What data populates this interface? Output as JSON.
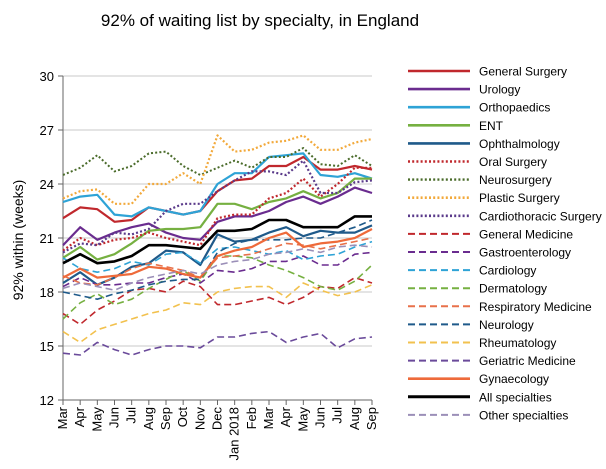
{
  "chart_data": {
    "type": "line",
    "title": "92% of waiting list by specialty, in England",
    "ylabel": "92% within (weeks)",
    "xlabel": "",
    "ylim": [
      12,
      30
    ],
    "yticks": [
      12,
      15,
      18,
      21,
      24,
      27,
      30
    ],
    "x": [
      "Mar",
      "Apr",
      "May",
      "Jun",
      "Jul",
      "Aug",
      "Sep",
      "Oct",
      "Nov",
      "Dec",
      "Jan 2018",
      "Feb",
      "Mar",
      "Apr",
      "May",
      "Jun",
      "Jul",
      "Aug",
      "Sep"
    ],
    "grid": "horizontal",
    "legend": "right",
    "series": [
      {
        "name": "General Surgery",
        "color": "#c0282d",
        "dash": "solid",
        "width": 2.2,
        "values": [
          22.1,
          22.7,
          22.6,
          21.9,
          22.0,
          22.7,
          22.5,
          22.3,
          22.5,
          23.6,
          24.2,
          24.3,
          25.0,
          25.0,
          25.5,
          24.8,
          24.8,
          25.0,
          24.8
        ]
      },
      {
        "name": "Urology",
        "color": "#6a2c8f",
        "dash": "solid",
        "width": 2.2,
        "values": [
          20.6,
          21.6,
          20.9,
          21.3,
          21.6,
          21.8,
          21.3,
          21.0,
          20.9,
          21.9,
          22.2,
          22.2,
          22.5,
          23.0,
          23.3,
          22.9,
          23.3,
          23.8,
          23.5
        ]
      },
      {
        "name": "Orthopaedics",
        "color": "#2ea3d6",
        "dash": "solid",
        "width": 2.2,
        "values": [
          23.0,
          23.3,
          23.4,
          22.3,
          22.2,
          22.7,
          22.5,
          22.3,
          22.5,
          24.0,
          24.6,
          24.6,
          25.5,
          25.6,
          25.7,
          24.5,
          24.4,
          24.6,
          24.3
        ]
      },
      {
        "name": "ENT",
        "color": "#76b041",
        "dash": "solid",
        "width": 2.2,
        "values": [
          19.9,
          20.5,
          19.8,
          20.1,
          20.7,
          21.4,
          21.5,
          21.5,
          21.6,
          22.9,
          22.9,
          22.6,
          23.0,
          23.2,
          23.6,
          23.2,
          23.5,
          24.3,
          24.3
        ]
      },
      {
        "name": "Ophthalmology",
        "color": "#1f5a8a",
        "dash": "solid",
        "width": 2.2,
        "values": [
          18.5,
          19.1,
          18.4,
          18.8,
          19.4,
          19.6,
          20.3,
          20.2,
          19.5,
          21.2,
          20.8,
          20.9,
          21.3,
          21.6,
          21.1,
          21.4,
          21.3,
          21.3,
          21.7
        ]
      },
      {
        "name": "Oral Surgery",
        "color": "#c0282d",
        "dash": "dot",
        "width": 2.2,
        "values": [
          20.3,
          21.0,
          20.6,
          20.9,
          21.0,
          21.3,
          21.0,
          20.8,
          20.6,
          22.1,
          22.3,
          22.3,
          23.2,
          23.5,
          24.3,
          23.3,
          24.0,
          24.9,
          24.9
        ]
      },
      {
        "name": "Neurosurgery",
        "color": "#4a6b2a",
        "dash": "dot",
        "width": 2.0,
        "values": [
          24.5,
          24.9,
          25.6,
          24.7,
          25.0,
          25.7,
          25.8,
          25.0,
          24.5,
          24.9,
          25.3,
          24.9,
          25.5,
          25.5,
          26.0,
          25.1,
          25.0,
          25.6,
          25.0
        ]
      },
      {
        "name": "Plastic Surgery",
        "color": "#f2a93b",
        "dash": "dot",
        "width": 2.2,
        "values": [
          23.2,
          23.6,
          23.7,
          22.9,
          22.9,
          24.0,
          24.0,
          24.6,
          24.0,
          26.7,
          25.8,
          25.9,
          26.3,
          26.4,
          26.7,
          25.9,
          25.9,
          26.3,
          26.5
        ]
      },
      {
        "name": "Cardiothoracic Surgery",
        "color": "#5a3a8a",
        "dash": "dot",
        "width": 2.2,
        "values": [
          20.2,
          20.7,
          20.6,
          21.3,
          21.2,
          21.5,
          22.5,
          22.9,
          22.9,
          23.6,
          24.2,
          24.7,
          24.7,
          24.5,
          25.3,
          23.5,
          23.5,
          24.1,
          24.2
        ]
      },
      {
        "name": "General Medicine",
        "color": "#c0282d",
        "dash": "longdash",
        "width": 1.6,
        "values": [
          16.8,
          16.2,
          17.0,
          17.5,
          18.1,
          18.2,
          18.0,
          18.6,
          18.3,
          17.3,
          17.3,
          17.5,
          17.7,
          17.3,
          17.7,
          18.3,
          18.2,
          18.8,
          18.5
        ]
      },
      {
        "name": "Gastroenterology",
        "color": "#6a2c8f",
        "dash": "longdash",
        "width": 1.6,
        "values": [
          18.3,
          18.8,
          18.4,
          18.4,
          18.5,
          18.5,
          18.8,
          19.0,
          18.5,
          19.2,
          19.1,
          19.3,
          19.7,
          19.7,
          20.0,
          19.5,
          19.5,
          20.1,
          20.2
        ]
      },
      {
        "name": "Cardiology",
        "color": "#2ea3d6",
        "dash": "longdash",
        "width": 1.6,
        "values": [
          19.9,
          19.3,
          19.1,
          19.3,
          19.7,
          19.5,
          20.1,
          20.2,
          19.6,
          20.4,
          20.5,
          20.3,
          20.1,
          20.3,
          19.8,
          20.0,
          20.1,
          20.5,
          20.8
        ]
      },
      {
        "name": "Dermatology",
        "color": "#76b041",
        "dash": "longdash",
        "width": 1.6,
        "values": [
          16.5,
          17.4,
          17.9,
          17.3,
          17.6,
          18.2,
          18.7,
          19.2,
          18.6,
          20.0,
          20.0,
          19.9,
          19.5,
          19.2,
          18.8,
          18.3,
          18.1,
          18.6,
          19.5
        ]
      },
      {
        "name": "Respiratory Medicine",
        "color": "#e8714a",
        "dash": "longdash",
        "width": 1.6,
        "values": [
          18.9,
          18.5,
          18.4,
          18.8,
          19.3,
          19.6,
          19.4,
          19.2,
          18.8,
          19.9,
          20.0,
          20.1,
          20.4,
          20.7,
          20.6,
          20.4,
          20.6,
          20.8,
          21.0
        ]
      },
      {
        "name": "Neurology",
        "color": "#1f5a8a",
        "dash": "longdash",
        "width": 1.6,
        "values": [
          18.0,
          17.8,
          17.6,
          17.9,
          18.1,
          18.4,
          18.6,
          18.7,
          18.7,
          20.2,
          20.7,
          20.9,
          20.9,
          20.9,
          21.0,
          21.0,
          21.3,
          21.6,
          22.0
        ]
      },
      {
        "name": "Rheumatology",
        "color": "#f2c14e",
        "dash": "longdash",
        "width": 1.6,
        "values": [
          15.8,
          15.2,
          15.9,
          16.2,
          16.5,
          16.8,
          17.0,
          17.4,
          17.3,
          18.0,
          18.2,
          18.3,
          18.3,
          17.7,
          18.5,
          18.1,
          17.8,
          18.0,
          18.4
        ]
      },
      {
        "name": "Geriatric Medicine",
        "color": "#6a4a9a",
        "dash": "longdash",
        "width": 1.6,
        "values": [
          14.6,
          14.5,
          15.2,
          14.8,
          14.5,
          14.8,
          15.0,
          15.0,
          14.9,
          15.5,
          15.5,
          15.7,
          15.8,
          15.2,
          15.5,
          15.7,
          14.9,
          15.4,
          15.5
        ]
      },
      {
        "name": "Gynaecology",
        "color": "#ee6a3a",
        "dash": "solid",
        "width": 2.2,
        "values": [
          18.8,
          19.3,
          18.8,
          18.9,
          19.0,
          19.4,
          19.3,
          19.0,
          18.8,
          20.0,
          20.3,
          20.5,
          21.0,
          21.3,
          20.5,
          20.7,
          20.8,
          21.0,
          21.5
        ]
      },
      {
        "name": "All specialties",
        "color": "#000000",
        "dash": "solid",
        "width": 2.6,
        "values": [
          19.6,
          20.1,
          19.6,
          19.7,
          20.0,
          20.6,
          20.6,
          20.5,
          20.4,
          21.4,
          21.4,
          21.5,
          22.0,
          22.0,
          21.6,
          21.6,
          21.6,
          22.2,
          22.2
        ]
      },
      {
        "name": "Other specialties",
        "color": "#9b8fb8",
        "dash": "longdash",
        "width": 1.6,
        "values": [
          18.2,
          18.5,
          18.3,
          18.1,
          18.5,
          18.8,
          19.0,
          19.2,
          19.0,
          19.5,
          19.7,
          19.8,
          20.1,
          20.2,
          20.4,
          20.2,
          20.5,
          20.6,
          20.5
        ]
      }
    ]
  }
}
